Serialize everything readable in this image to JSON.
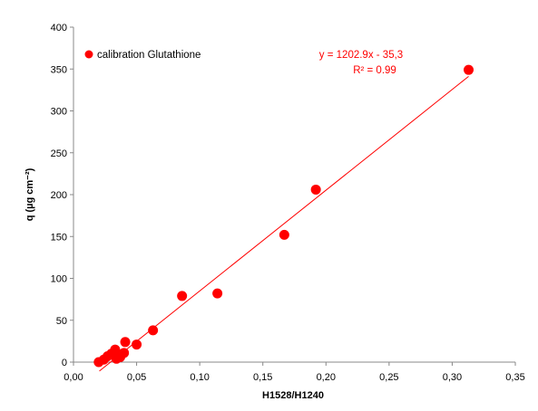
{
  "chart_data": {
    "type": "scatter",
    "title": "",
    "xlabel": "H1528/H1240",
    "ylabel": "q (µg cm⁻²)",
    "xlim": [
      0,
      0.35
    ],
    "ylim": [
      0,
      400
    ],
    "x_ticks": [
      0,
      0.05,
      0.1,
      0.15,
      0.2,
      0.25,
      0.3,
      0.35
    ],
    "x_tick_labels": [
      "0,00",
      "0,05",
      "0,10",
      "0,15",
      "0,20",
      "0,25",
      "0,30",
      "0,35"
    ],
    "y_ticks": [
      0,
      50,
      100,
      150,
      200,
      250,
      300,
      350,
      400
    ],
    "y_tick_labels": [
      "0",
      "50",
      "100",
      "150",
      "200",
      "250",
      "300",
      "350",
      "400"
    ],
    "grid": false,
    "legend_position": "top-left",
    "series": [
      {
        "name": "calibration Glutathione",
        "color": "#ff0000",
        "points": [
          {
            "x": 0.02,
            "y": 0
          },
          {
            "x": 0.024,
            "y": 3
          },
          {
            "x": 0.027,
            "y": 7
          },
          {
            "x": 0.03,
            "y": 10
          },
          {
            "x": 0.033,
            "y": 15
          },
          {
            "x": 0.034,
            "y": 4
          },
          {
            "x": 0.037,
            "y": 6
          },
          {
            "x": 0.04,
            "y": 11
          },
          {
            "x": 0.041,
            "y": 24
          },
          {
            "x": 0.05,
            "y": 21
          },
          {
            "x": 0.063,
            "y": 38
          },
          {
            "x": 0.086,
            "y": 79
          },
          {
            "x": 0.114,
            "y": 82
          },
          {
            "x": 0.167,
            "y": 152
          },
          {
            "x": 0.192,
            "y": 206
          },
          {
            "x": 0.313,
            "y": 349
          }
        ]
      }
    ],
    "trendline": {
      "type": "linear",
      "slope": 1202.9,
      "intercept": -35.3,
      "x_range": [
        0.0205,
        0.313
      ],
      "color": "#ff0000",
      "equation_label": "y = 1202.9x - 35,3",
      "r2_label": "R² = 0.99"
    }
  }
}
